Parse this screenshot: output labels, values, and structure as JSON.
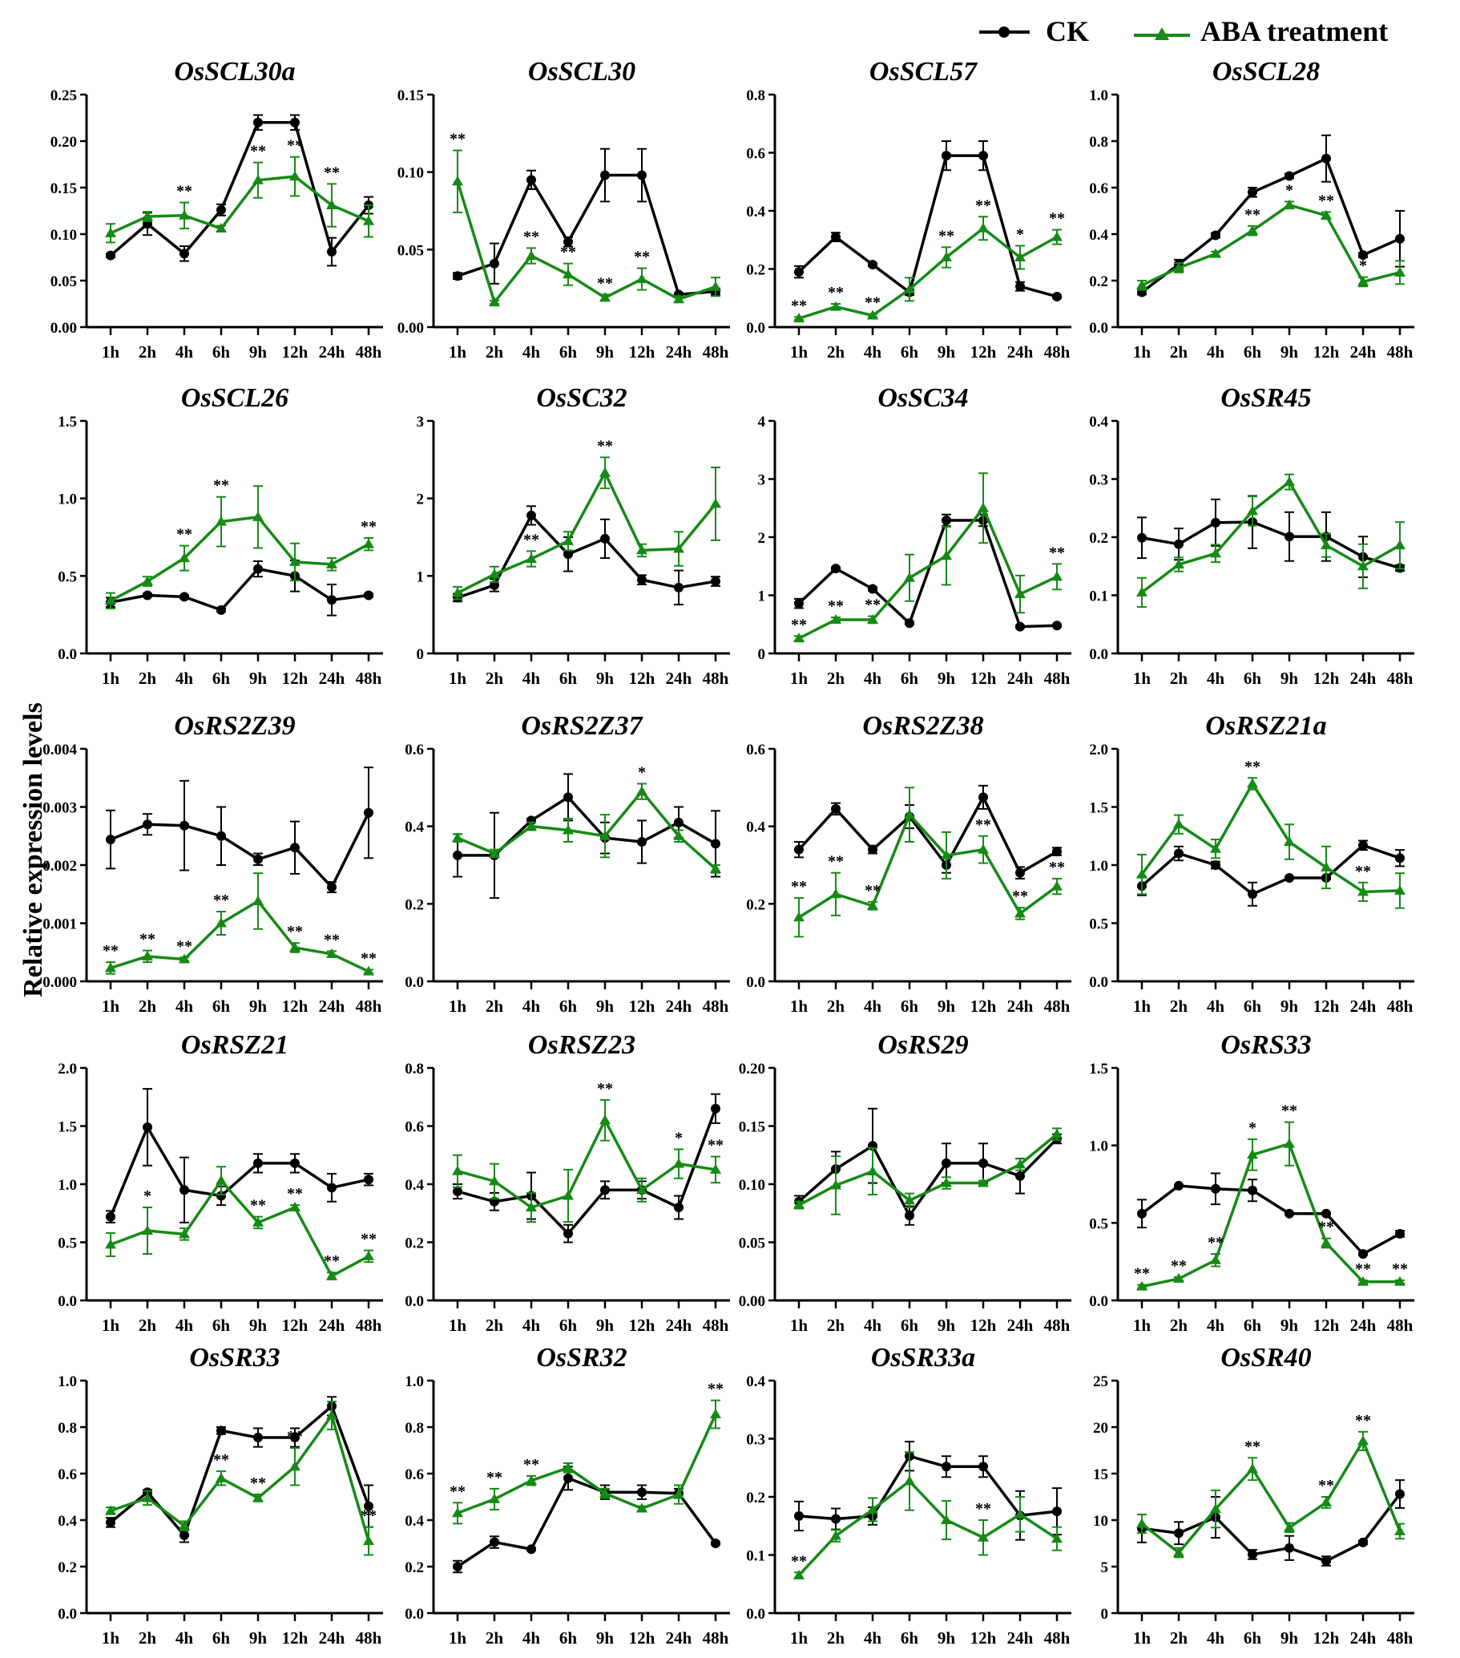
{
  "legend": {
    "ck": "CK",
    "aba": "ABA treatment"
  },
  "ylabel": "Relative expression levels",
  "colors": {
    "ck": "#000000",
    "aba": "#158a15"
  },
  "chart_data": [
    {
      "type": "line",
      "title": "OsSCL30a",
      "ylim": [
        0,
        0.25
      ],
      "yticks": [
        "0.00",
        "0.05",
        "0.10",
        "0.15",
        "0.20",
        "0.25"
      ],
      "tickvals": [
        0,
        0.05,
        0.1,
        0.15,
        0.2,
        0.25
      ],
      "ck": [
        0.077,
        0.111,
        0.079,
        0.126,
        0.22,
        0.22,
        0.081,
        0.131
      ],
      "ck_err": [
        0.002,
        0.012,
        0.008,
        0.006,
        0.008,
        0.008,
        0.015,
        0.009
      ],
      "aba": [
        0.101,
        0.119,
        0.12,
        0.106,
        0.158,
        0.162,
        0.131,
        0.114
      ],
      "aba_err": [
        0.01,
        0.005,
        0.014,
        0.003,
        0.019,
        0.021,
        0.023,
        0.017
      ],
      "sig": [
        "",
        "",
        "**",
        "",
        "**",
        "**",
        "**",
        ""
      ]
    },
    {
      "type": "line",
      "title": "OsSCL30",
      "ylim": [
        0,
        0.15
      ],
      "yticks": [
        "0.00",
        "0.05",
        "0.10",
        "0.15"
      ],
      "tickvals": [
        0,
        0.05,
        0.1,
        0.15
      ],
      "ck": [
        0.033,
        0.041,
        0.095,
        0.055,
        0.098,
        0.098,
        0.021,
        0.023
      ],
      "ck_err": [
        0.002,
        0.013,
        0.006,
        0.003,
        0.017,
        0.017,
        0.001,
        0.002
      ],
      "aba": [
        0.094,
        0.016,
        0.046,
        0.034,
        0.019,
        0.031,
        0.018,
        0.026
      ],
      "aba_err": [
        0.02,
        0.001,
        0.005,
        0.007,
        0.002,
        0.007,
        0.002,
        0.006
      ],
      "sig": [
        "**",
        "",
        "**",
        "**",
        "**",
        "**",
        "",
        ""
      ]
    },
    {
      "type": "line",
      "title": "OsSCL57",
      "ylim": [
        0,
        0.8
      ],
      "yticks": [
        "0.0",
        "0.2",
        "0.4",
        "0.6",
        "0.8"
      ],
      "tickvals": [
        0,
        0.2,
        0.4,
        0.6,
        0.8
      ],
      "ck": [
        0.19,
        0.31,
        0.215,
        0.12,
        0.59,
        0.59,
        0.14,
        0.105
      ],
      "ck_err": [
        0.02,
        0.015,
        0.005,
        0.01,
        0.05,
        0.05,
        0.015,
        0.005
      ],
      "aba": [
        0.03,
        0.07,
        0.04,
        0.13,
        0.24,
        0.34,
        0.24,
        0.31
      ],
      "aba_err": [
        0.005,
        0.01,
        0.005,
        0.04,
        0.035,
        0.04,
        0.04,
        0.025
      ],
      "sig": [
        "**",
        "**",
        "**",
        "",
        "**",
        "**",
        "*",
        "**"
      ]
    },
    {
      "type": "line",
      "title": "OsSCL28",
      "ylim": [
        0,
        1.0
      ],
      "yticks": [
        "0.0",
        "0.2",
        "0.4",
        "0.6",
        "0.8",
        "1.0"
      ],
      "tickvals": [
        0,
        0.2,
        0.4,
        0.6,
        0.8,
        1.0
      ],
      "ck": [
        0.15,
        0.27,
        0.395,
        0.58,
        0.65,
        0.725,
        0.31,
        0.38
      ],
      "ck_err": [
        0.01,
        0.02,
        0.01,
        0.02,
        0.01,
        0.1,
        0.01,
        0.12
      ],
      "aba": [
        0.18,
        0.255,
        0.315,
        0.415,
        0.525,
        0.48,
        0.195,
        0.235
      ],
      "aba_err": [
        0.02,
        0.02,
        0.01,
        0.02,
        0.015,
        0.015,
        0.02,
        0.05
      ],
      "sig": [
        "",
        "",
        "",
        "**",
        "*",
        "**",
        "*",
        ""
      ]
    },
    {
      "type": "line",
      "title": "OsSCL26",
      "ylim": [
        0,
        1.5
      ],
      "yticks": [
        "0.0",
        "0.5",
        "1.0",
        "1.5"
      ],
      "tickvals": [
        0,
        0.5,
        1.0,
        1.5
      ],
      "ck": [
        0.33,
        0.375,
        0.365,
        0.28,
        0.545,
        0.5,
        0.345,
        0.375
      ],
      "ck_err": [
        0.03,
        0.01,
        0.01,
        0.01,
        0.05,
        0.1,
        0.1,
        0.01
      ],
      "aba": [
        0.34,
        0.465,
        0.615,
        0.85,
        0.88,
        0.59,
        0.575,
        0.705
      ],
      "aba_err": [
        0.05,
        0.03,
        0.08,
        0.16,
        0.2,
        0.12,
        0.04,
        0.04
      ],
      "sig": [
        "",
        "",
        "**",
        "**",
        "",
        "",
        "",
        "**"
      ]
    },
    {
      "type": "line",
      "title": "OsSC32",
      "ylim": [
        0,
        3
      ],
      "yticks": [
        "0",
        "1",
        "2",
        "3"
      ],
      "tickvals": [
        0,
        1,
        2,
        3
      ],
      "ck": [
        0.72,
        0.88,
        1.78,
        1.28,
        1.48,
        0.95,
        0.85,
        0.93
      ],
      "ck_err": [
        0.05,
        0.08,
        0.12,
        0.22,
        0.25,
        0.06,
        0.22,
        0.06
      ],
      "aba": [
        0.78,
        1.02,
        1.22,
        1.45,
        2.33,
        1.33,
        1.35,
        1.93
      ],
      "aba_err": [
        0.08,
        0.1,
        0.1,
        0.12,
        0.2,
        0.08,
        0.22,
        0.47
      ],
      "sig": [
        "",
        "",
        "**",
        "",
        "**",
        "",
        "",
        ""
      ]
    },
    {
      "type": "line",
      "title": "OsSC34",
      "ylim": [
        0,
        4
      ],
      "yticks": [
        "0",
        "1",
        "2",
        "3",
        "4"
      ],
      "tickvals": [
        0,
        1,
        2,
        3,
        4
      ],
      "ck": [
        0.86,
        1.46,
        1.11,
        0.52,
        2.29,
        2.29,
        0.46,
        0.48
      ],
      "ck_err": [
        0.08,
        0.02,
        0.03,
        0.02,
        0.1,
        0.1,
        0.02,
        0.02
      ],
      "aba": [
        0.26,
        0.58,
        0.58,
        1.3,
        1.68,
        2.5,
        1.02,
        1.32
      ],
      "aba_err": [
        0.04,
        0.04,
        0.06,
        0.4,
        0.5,
        0.6,
        0.32,
        0.22
      ],
      "sig": [
        "**",
        "**",
        "**",
        "",
        "",
        "",
        "",
        "**"
      ]
    },
    {
      "type": "line",
      "title": "OsSR45",
      "ylim": [
        0,
        0.4
      ],
      "yticks": [
        "0.0",
        "0.1",
        "0.2",
        "0.3",
        "0.4"
      ],
      "tickvals": [
        0,
        0.1,
        0.2,
        0.3,
        0.4
      ],
      "ck": [
        0.199,
        0.188,
        0.225,
        0.226,
        0.201,
        0.201,
        0.166,
        0.147
      ],
      "ck_err": [
        0.035,
        0.027,
        0.04,
        0.045,
        0.042,
        0.042,
        0.035,
        0.005
      ],
      "aba": [
        0.105,
        0.153,
        0.172,
        0.245,
        0.295,
        0.186,
        0.15,
        0.186
      ],
      "aba_err": [
        0.025,
        0.012,
        0.015,
        0.025,
        0.013,
        0.02,
        0.038,
        0.04
      ],
      "sig": [
        "",
        "",
        "",
        "",
        "",
        "",
        "",
        ""
      ]
    },
    {
      "type": "line",
      "title": "OsRS2Z39",
      "ylim": [
        0,
        0.004
      ],
      "yticks": [
        "0.000",
        "0.001",
        "0.002",
        "0.003",
        "0.004"
      ],
      "tickvals": [
        0,
        0.001,
        0.002,
        0.003,
        0.004
      ],
      "ck": [
        0.00244,
        0.0027,
        0.00268,
        0.0025,
        0.0021,
        0.0023,
        0.00162,
        0.0029
      ],
      "ck_err": [
        0.0005,
        0.00018,
        0.00077,
        0.0005,
        0.0001,
        0.00045,
        9e-05,
        0.00078
      ],
      "aba": [
        0.00023,
        0.00043,
        0.00038,
        0.001,
        0.00138,
        0.00058,
        0.00047,
        0.00017
      ],
      "aba_err": [
        0.0001,
        0.0001,
        3e-05,
        0.0002,
        0.00048,
        8e-05,
        5e-05,
        3e-05
      ],
      "sig": [
        "**",
        "**",
        "**",
        "**",
        "",
        "**",
        "**",
        "**"
      ]
    },
    {
      "type": "line",
      "title": "OsRS2Z37",
      "ylim": [
        0,
        0.6
      ],
      "yticks": [
        "0.0",
        "0.2",
        "0.4",
        "0.6"
      ],
      "tickvals": [
        0,
        0.2,
        0.4,
        0.6
      ],
      "ck": [
        0.325,
        0.325,
        0.415,
        0.475,
        0.37,
        0.36,
        0.41,
        0.355
      ],
      "ck_err": [
        0.055,
        0.11,
        0.005,
        0.06,
        0.04,
        0.055,
        0.04,
        0.085
      ],
      "aba": [
        0.37,
        0.33,
        0.4,
        0.39,
        0.375,
        0.49,
        0.375,
        0.29
      ],
      "aba_err": [
        0.01,
        0.01,
        0.01,
        0.03,
        0.055,
        0.02,
        0.015,
        0.01
      ],
      "sig": [
        "",
        "",
        "",
        "",
        "",
        "*",
        "",
        ""
      ]
    },
    {
      "type": "line",
      "title": "OsRS2Z38",
      "ylim": [
        0,
        0.6
      ],
      "yticks": [
        "0.0",
        "0.2",
        "0.4",
        "0.6"
      ],
      "tickvals": [
        0,
        0.2,
        0.4,
        0.6
      ],
      "ck": [
        0.34,
        0.445,
        0.34,
        0.425,
        0.3,
        0.475,
        0.28,
        0.335
      ],
      "ck_err": [
        0.02,
        0.015,
        0.01,
        0.03,
        0.02,
        0.03,
        0.015,
        0.01
      ],
      "aba": [
        0.165,
        0.225,
        0.195,
        0.43,
        0.325,
        0.34,
        0.175,
        0.245
      ],
      "aba_err": [
        0.05,
        0.055,
        0.01,
        0.07,
        0.06,
        0.035,
        0.015,
        0.02
      ],
      "sig": [
        "**",
        "**",
        "**",
        "",
        "",
        "**",
        "**",
        "**"
      ]
    },
    {
      "type": "line",
      "title": "OsRSZ21a",
      "ylim": [
        0,
        2.0
      ],
      "yticks": [
        "0.0",
        "0.5",
        "1.0",
        "1.5",
        "2.0"
      ],
      "tickvals": [
        0,
        0.5,
        1.0,
        1.5,
        2.0
      ],
      "ck": [
        0.82,
        1.1,
        1.0,
        0.75,
        0.89,
        0.89,
        1.17,
        1.06
      ],
      "ck_err": [
        0.08,
        0.06,
        0.03,
        0.1,
        0.01,
        0.01,
        0.04,
        0.07
      ],
      "aba": [
        0.92,
        1.35,
        1.14,
        1.7,
        1.2,
        0.98,
        0.77,
        0.78
      ],
      "aba_err": [
        0.17,
        0.08,
        0.08,
        0.05,
        0.15,
        0.18,
        0.08,
        0.15
      ],
      "sig": [
        "",
        "",
        "",
        "**",
        "",
        "",
        "**",
        ""
      ]
    },
    {
      "type": "line",
      "title": "OsRSZ21",
      "ylim": [
        0,
        2.0
      ],
      "yticks": [
        "0.0",
        "0.5",
        "1.0",
        "1.5",
        "2.0"
      ],
      "tickvals": [
        0,
        0.5,
        1.0,
        1.5,
        2.0
      ],
      "ck": [
        0.72,
        1.49,
        0.95,
        0.9,
        1.18,
        1.18,
        0.97,
        1.04
      ],
      "ck_err": [
        0.05,
        0.33,
        0.28,
        0.08,
        0.08,
        0.08,
        0.12,
        0.05
      ],
      "aba": [
        0.48,
        0.6,
        0.57,
        1.03,
        0.67,
        0.8,
        0.21,
        0.38
      ],
      "aba_err": [
        0.1,
        0.2,
        0.05,
        0.12,
        0.05,
        0.02,
        0.03,
        0.05
      ],
      "sig": [
        "",
        "*",
        "",
        "",
        "**",
        "**",
        "**",
        "**"
      ]
    },
    {
      "type": "line",
      "title": "OsRSZ23",
      "ylim": [
        0,
        0.8
      ],
      "yticks": [
        "0.0",
        "0.2",
        "0.4",
        "0.6",
        "0.8"
      ],
      "tickvals": [
        0,
        0.2,
        0.4,
        0.6,
        0.8
      ],
      "ck": [
        0.375,
        0.34,
        0.36,
        0.23,
        0.38,
        0.38,
        0.32,
        0.66
      ],
      "ck_err": [
        0.025,
        0.03,
        0.08,
        0.03,
        0.03,
        0.03,
        0.04,
        0.05
      ],
      "aba": [
        0.445,
        0.41,
        0.32,
        0.36,
        0.62,
        0.38,
        0.47,
        0.45
      ],
      "aba_err": [
        0.055,
        0.06,
        0.05,
        0.09,
        0.07,
        0.04,
        0.05,
        0.045
      ],
      "sig": [
        "",
        "",
        "",
        "",
        "**",
        "",
        "*",
        "**"
      ]
    },
    {
      "type": "line",
      "title": "OsRS29",
      "ylim": [
        0,
        0.2
      ],
      "yticks": [
        "0.00",
        "0.05",
        "0.10",
        "0.15",
        "0.20"
      ],
      "tickvals": [
        0,
        0.05,
        0.1,
        0.15,
        0.2
      ],
      "ck": [
        0.085,
        0.113,
        0.133,
        0.073,
        0.118,
        0.118,
        0.107,
        0.139
      ],
      "ck_err": [
        0.005,
        0.015,
        0.032,
        0.008,
        0.017,
        0.017,
        0.015,
        0.004
      ],
      "aba": [
        0.082,
        0.099,
        0.111,
        0.086,
        0.101,
        0.101,
        0.117,
        0.143
      ],
      "aba_err": [
        0.003,
        0.025,
        0.02,
        0.006,
        0.005,
        0.002,
        0.005,
        0.005
      ],
      "sig": [
        "",
        "",
        "",
        "",
        "",
        "",
        "",
        ""
      ]
    },
    {
      "type": "line",
      "title": "OsRS33",
      "ylim": [
        0,
        1.5
      ],
      "yticks": [
        "0.0",
        "0.5",
        "1.0",
        "1.5"
      ],
      "tickvals": [
        0,
        0.5,
        1.0,
        1.5
      ],
      "ck": [
        0.56,
        0.74,
        0.72,
        0.71,
        0.56,
        0.56,
        0.3,
        0.43
      ],
      "ck_err": [
        0.09,
        0.005,
        0.1,
        0.07,
        0.005,
        0.005,
        0.005,
        0.02
      ],
      "aba": [
        0.09,
        0.14,
        0.26,
        0.94,
        1.01,
        0.37,
        0.12,
        0.12
      ],
      "aba_err": [
        0.01,
        0.01,
        0.04,
        0.1,
        0.14,
        0.03,
        0.01,
        0.01
      ],
      "sig": [
        "**",
        "**",
        "**",
        "*",
        "**",
        "**",
        "**",
        "**"
      ]
    },
    {
      "type": "line",
      "title": "OsSR33",
      "ylim": [
        0,
        1.0
      ],
      "yticks": [
        "0.0",
        "0.2",
        "0.4",
        "0.6",
        "0.8",
        "1.0"
      ],
      "tickvals": [
        0,
        0.2,
        0.4,
        0.6,
        0.8,
        1.0
      ],
      "ck": [
        0.39,
        0.52,
        0.335,
        0.785,
        0.755,
        0.755,
        0.89,
        0.46
      ],
      "ck_err": [
        0.02,
        0.01,
        0.03,
        0.015,
        0.04,
        0.04,
        0.04,
        0.09
      ],
      "aba": [
        0.44,
        0.495,
        0.375,
        0.58,
        0.495,
        0.63,
        0.85,
        0.31
      ],
      "aba_err": [
        0.015,
        0.03,
        0.02,
        0.03,
        0.015,
        0.08,
        0.06,
        0.06
      ],
      "sig": [
        "",
        "",
        "",
        "**",
        "**",
        "**",
        "",
        "**"
      ]
    },
    {
      "type": "line",
      "title": "OsSR32",
      "ylim": [
        0,
        1.0
      ],
      "yticks": [
        "0.0",
        "0.2",
        "0.4",
        "0.6",
        "0.8",
        "1.0"
      ],
      "tickvals": [
        0,
        0.2,
        0.4,
        0.6,
        0.8,
        1.0
      ],
      "ck": [
        0.2,
        0.305,
        0.275,
        0.58,
        0.52,
        0.52,
        0.515,
        0.3
      ],
      "ck_err": [
        0.025,
        0.025,
        0.005,
        0.05,
        0.03,
        0.03,
        0.02,
        0.005
      ],
      "aba": [
        0.43,
        0.49,
        0.57,
        0.625,
        0.515,
        0.45,
        0.51,
        0.855
      ],
      "aba_err": [
        0.045,
        0.045,
        0.02,
        0.02,
        0.02,
        0.01,
        0.04,
        0.06
      ],
      "sig": [
        "**",
        "**",
        "**",
        "",
        "",
        "",
        "",
        "**"
      ]
    },
    {
      "type": "line",
      "title": "OsSR33a",
      "ylim": [
        0,
        0.4
      ],
      "yticks": [
        "0.0",
        "0.1",
        "0.2",
        "0.3",
        "0.4"
      ],
      "tickvals": [
        0,
        0.1,
        0.2,
        0.3,
        0.4
      ],
      "ck": [
        0.167,
        0.162,
        0.167,
        0.27,
        0.252,
        0.252,
        0.168,
        0.175
      ],
      "ck_err": [
        0.025,
        0.018,
        0.015,
        0.025,
        0.018,
        0.018,
        0.042,
        0.04
      ],
      "aba": [
        0.065,
        0.133,
        0.178,
        0.227,
        0.16,
        0.13,
        0.17,
        0.128
      ],
      "aba_err": [
        0.005,
        0.01,
        0.02,
        0.05,
        0.033,
        0.03,
        0.03,
        0.02
      ],
      "sig": [
        "**",
        "",
        "",
        "",
        "",
        "**",
        "",
        ""
      ]
    },
    {
      "type": "line",
      "title": "OsSR40",
      "ylim": [
        0,
        25
      ],
      "yticks": [
        "0",
        "5",
        "10",
        "15",
        "20",
        "25"
      ],
      "tickvals": [
        0,
        5,
        10,
        15,
        20,
        25
      ],
      "ck": [
        9.1,
        8.6,
        10.3,
        6.3,
        7.0,
        5.6,
        7.6,
        12.8
      ],
      "ck_err": [
        1.5,
        1.2,
        2.2,
        0.5,
        1.3,
        0.5,
        0.2,
        1.5
      ],
      "aba": [
        9.6,
        6.5,
        11.2,
        15.5,
        9.2,
        11.9,
        18.5,
        8.8
      ],
      "aba_err": [
        1.0,
        0.5,
        2.0,
        1.2,
        0.5,
        0.6,
        1.0,
        0.8
      ],
      "sig": [
        "",
        "",
        "",
        "**",
        "",
        "**",
        "**",
        ""
      ]
    }
  ],
  "categories": [
    "1h",
    "2h",
    "4h",
    "6h",
    "9h",
    "12h",
    "24h",
    "48h"
  ]
}
